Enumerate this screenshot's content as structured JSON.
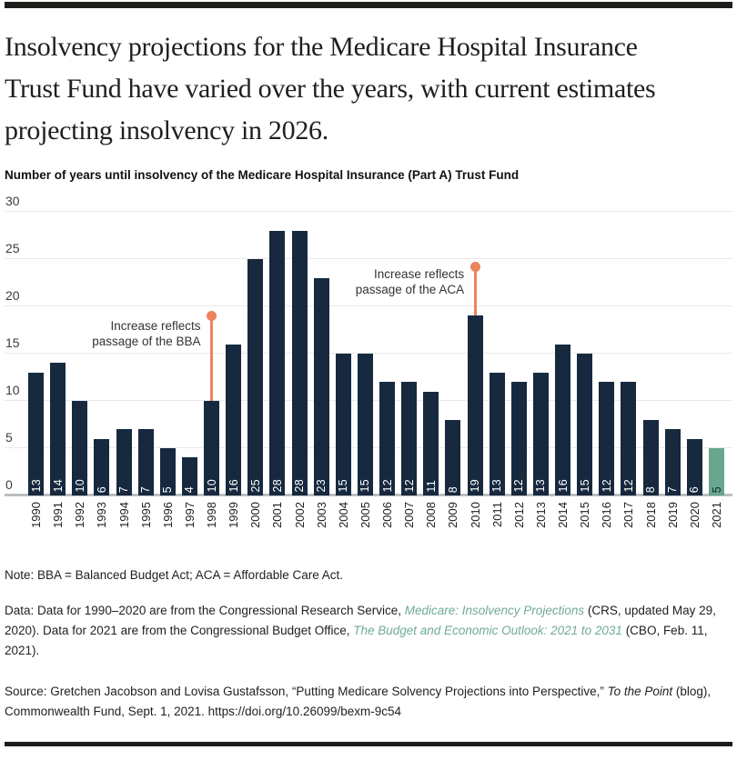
{
  "page": {
    "title_lines": [
      "Insolvency projections for the Medicare Hospital Insurance",
      "Trust Fund have varied over the years, with current estimates",
      "projecting insolvency in 2026."
    ],
    "subtitle": "Number of years until insolvency of the Medicare Hospital Insurance (Part A) Trust Fund"
  },
  "chart_data": {
    "type": "bar",
    "title": "Number of years until insolvency of the Medicare Hospital Insurance (Part A) Trust Fund",
    "categories": [
      "1990",
      "1991",
      "1992",
      "1993",
      "1994",
      "1995",
      "1996",
      "1997",
      "1998",
      "1999",
      "2000",
      "2001",
      "2002",
      "2003",
      "2004",
      "2005",
      "2006",
      "2007",
      "2008",
      "2009",
      "2010",
      "2011",
      "2012",
      "2013",
      "2014",
      "2015",
      "2016",
      "2017",
      "2018",
      "2019",
      "2020",
      "2021"
    ],
    "values": [
      13,
      14,
      10,
      6,
      7,
      7,
      5,
      4,
      10,
      16,
      25,
      28,
      28,
      23,
      15,
      15,
      12,
      12,
      11,
      8,
      19,
      13,
      12,
      13,
      16,
      15,
      12,
      12,
      8,
      7,
      6,
      5
    ],
    "xlabel": "",
    "ylabel": "",
    "ylim": [
      0,
      30
    ],
    "yticks": [
      0,
      5,
      10,
      15,
      20,
      25,
      30
    ],
    "grid": true,
    "legend": false,
    "bar_color": "#16293e",
    "highlight_bar": {
      "category": "2021",
      "color": "#68a68e"
    },
    "annotation_color": "#ec835c",
    "annotations": [
      {
        "text_lines": [
          "Increase reflects",
          "passage of the BBA"
        ],
        "target_category": "1998",
        "line_top_value": 18.8
      },
      {
        "text_lines": [
          "Increase reflects",
          "passage of the ACA"
        ],
        "target_category": "2010",
        "line_top_value": 24
      }
    ]
  },
  "footer": {
    "note": "Note: BBA = Balanced Budget Act; ACA = Affordable Care Act.",
    "data_segments": [
      {
        "text": "Data: Data for 1990–2020 are from the Congressional Research Service, ",
        "style": "plain"
      },
      {
        "text": "Medicare: Insolvency Projections",
        "style": "link"
      },
      {
        "text": " (CRS, updated May 29, 2020). Data for 2021 are from the Congressional Budget Office, ",
        "style": "plain"
      },
      {
        "text": "The Budget and Economic Outlook: 2021 to 2031",
        "style": "link"
      },
      {
        "text": " (CBO, Feb. 11, 2021).",
        "style": "plain"
      }
    ],
    "source_segments": [
      {
        "text": "Source: Gretchen Jacobson and Lovisa Gustafsson, “Putting Medicare Solvency Projections into Perspective,” ",
        "style": "plain"
      },
      {
        "text": "To the Point",
        "style": "italic"
      },
      {
        "text": " (blog), Commonwealth Fund, Sept. 1, 2021. https://doi.org/10.26099/bexm-9c54",
        "style": "plain"
      }
    ],
    "link_color": "#6fab96"
  }
}
